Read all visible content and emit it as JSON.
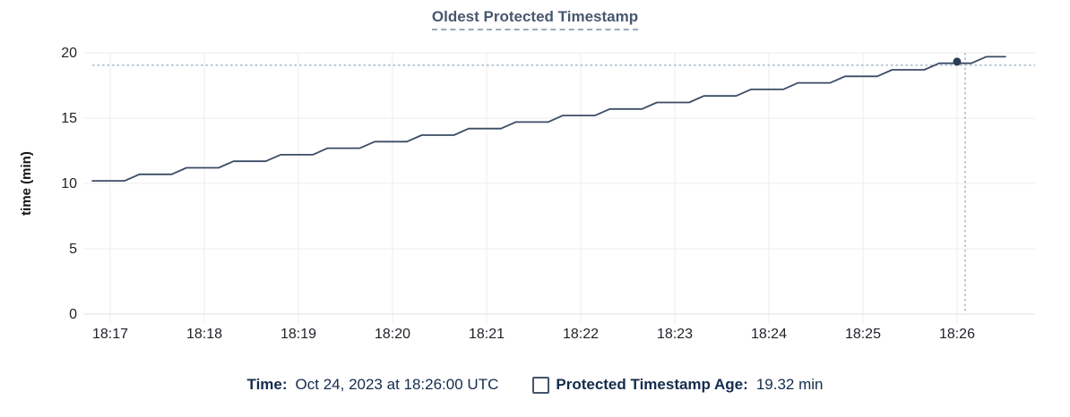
{
  "title": "Oldest Protected Timestamp",
  "legend": {
    "time_label": "Time:",
    "time_value": "Oct 24, 2023 at 18:26:00 UTC",
    "series_label": "Protected Timestamp Age:",
    "series_value": "19.32 min",
    "checkbox_icon": "empty-square-outline"
  },
  "chart_data": {
    "type": "line",
    "title": "Oldest Protected Timestamp",
    "xlabel": "",
    "ylabel": "time (min)",
    "x_tick_base_time": "18:17",
    "x_ticks": [
      {
        "offset_min": 0,
        "label": "18:17"
      },
      {
        "offset_min": 1,
        "label": "18:18"
      },
      {
        "offset_min": 2,
        "label": "18:19"
      },
      {
        "offset_min": 3,
        "label": "18:20"
      },
      {
        "offset_min": 4,
        "label": "18:21"
      },
      {
        "offset_min": 5,
        "label": "18:22"
      },
      {
        "offset_min": 6,
        "label": "18:23"
      },
      {
        "offset_min": 7,
        "label": "18:24"
      },
      {
        "offset_min": 8,
        "label": "18:25"
      },
      {
        "offset_min": 9,
        "label": "18:26"
      }
    ],
    "y_ticks": [
      0,
      5,
      10,
      15,
      20
    ],
    "ylim": [
      0,
      20
    ],
    "xlim": [
      -0.286,
      9.829
    ],
    "grid": true,
    "legend_position": "bottom",
    "series": [
      {
        "name": "Protected Timestamp Age",
        "unit": "min",
        "color": "#3b4b66",
        "points": [
          [
            -0.19,
            10.2
          ],
          [
            0.152,
            10.2
          ],
          [
            0.31,
            10.7
          ],
          [
            0.652,
            10.7
          ],
          [
            0.81,
            11.2
          ],
          [
            1.152,
            11.2
          ],
          [
            1.31,
            11.7
          ],
          [
            1.652,
            11.7
          ],
          [
            1.81,
            12.2
          ],
          [
            2.152,
            12.2
          ],
          [
            2.31,
            12.7
          ],
          [
            2.652,
            12.7
          ],
          [
            2.81,
            13.2
          ],
          [
            3.152,
            13.2
          ],
          [
            3.31,
            13.7
          ],
          [
            3.652,
            13.7
          ],
          [
            3.81,
            14.2
          ],
          [
            4.152,
            14.2
          ],
          [
            4.31,
            14.7
          ],
          [
            4.652,
            14.7
          ],
          [
            4.81,
            15.2
          ],
          [
            5.152,
            15.2
          ],
          [
            5.31,
            15.7
          ],
          [
            5.652,
            15.7
          ],
          [
            5.81,
            16.2
          ],
          [
            6.152,
            16.2
          ],
          [
            6.31,
            16.7
          ],
          [
            6.652,
            16.7
          ],
          [
            6.81,
            17.2
          ],
          [
            7.152,
            17.2
          ],
          [
            7.31,
            17.7
          ],
          [
            7.652,
            17.7
          ],
          [
            7.81,
            18.2
          ],
          [
            8.152,
            18.2
          ],
          [
            8.31,
            18.7
          ],
          [
            8.652,
            18.7
          ],
          [
            8.81,
            19.2
          ],
          [
            9.152,
            19.2
          ],
          [
            9.31,
            19.7
          ],
          [
            9.514,
            19.7
          ]
        ]
      }
    ],
    "hover": {
      "time": "Oct 24, 2023 at 18:26:00 UTC",
      "x_offset_min": 9.0,
      "point_value": 19.32,
      "crosshair_x_offset_min": 9.086,
      "crosshair_y_value": 19.05
    },
    "colors": {
      "gridline": "#ededed",
      "axis_line": "#e0e2e5",
      "tick_text": "#202328",
      "line": "#3b4b66",
      "hover_dot": "#2c3c57",
      "crosshair": "#a5b7c6",
      "title": "#47586e",
      "legend_text": "#142c4d"
    }
  }
}
